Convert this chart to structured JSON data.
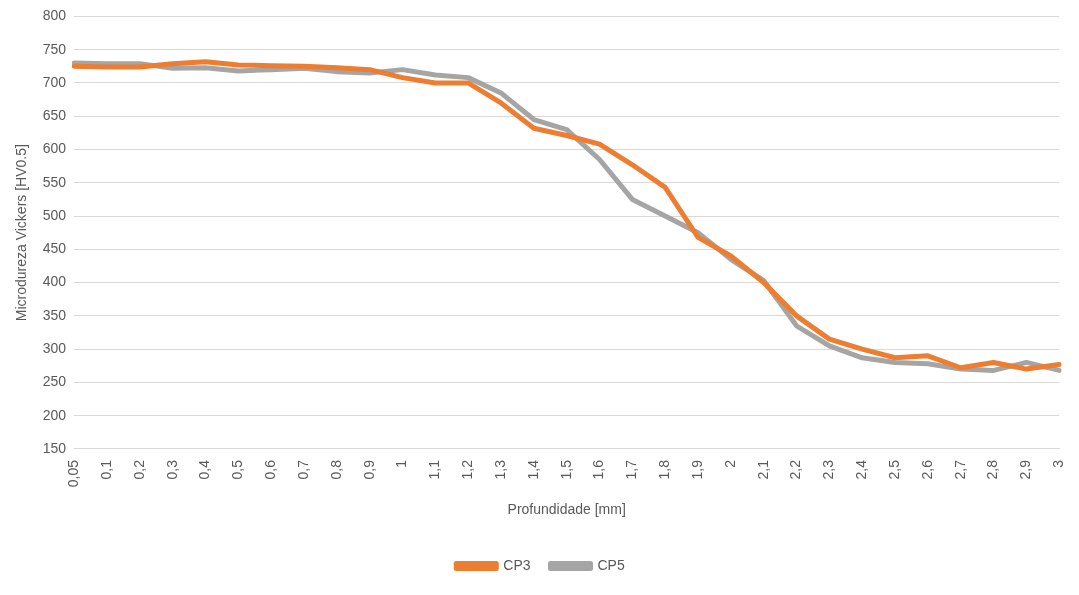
{
  "chart_data": {
    "type": "line",
    "xlabel": "Profundidade [mm]",
    "ylabel": "Microdureza Vickers [HV0.5]",
    "categories": [
      "0,05",
      "0,1",
      "0,2",
      "0,3",
      "0,4",
      "0,5",
      "0,6",
      "0,7",
      "0,8",
      "0,9",
      "1",
      "1,1",
      "1,2",
      "1,3",
      "1,4",
      "1,5",
      "1,6",
      "1,7",
      "1,8",
      "1,9",
      "2",
      "2,1",
      "2,2",
      "2,3",
      "2,4",
      "2,5",
      "2,6",
      "2,7",
      "2,8",
      "2,9",
      "3"
    ],
    "series": [
      {
        "name": "CP3",
        "color": "#ed7d31",
        "values": [
          725,
          724,
          724,
          729,
          732,
          727,
          726,
          725,
          723,
          720,
          708,
          700,
          700,
          670,
          632,
          621,
          608,
          577,
          543,
          468,
          440,
          400,
          350,
          315,
          300,
          287,
          290,
          272,
          280,
          270,
          277
        ]
      },
      {
        "name": "CP5",
        "color": "#a5a5a5",
        "values": [
          730,
          729,
          729,
          722,
          723,
          718,
          720,
          722,
          717,
          715,
          720,
          712,
          708,
          685,
          645,
          630,
          585,
          525,
          500,
          475,
          435,
          403,
          335,
          305,
          287,
          280,
          278,
          270,
          268,
          280,
          268
        ]
      }
    ],
    "ylim": [
      150,
      800
    ],
    "yticks": [
      150,
      200,
      250,
      300,
      350,
      400,
      450,
      500,
      550,
      600,
      650,
      700,
      750,
      800
    ],
    "grid": "y",
    "legend": "bottom",
    "marker": "none",
    "line_style": "solid"
  }
}
